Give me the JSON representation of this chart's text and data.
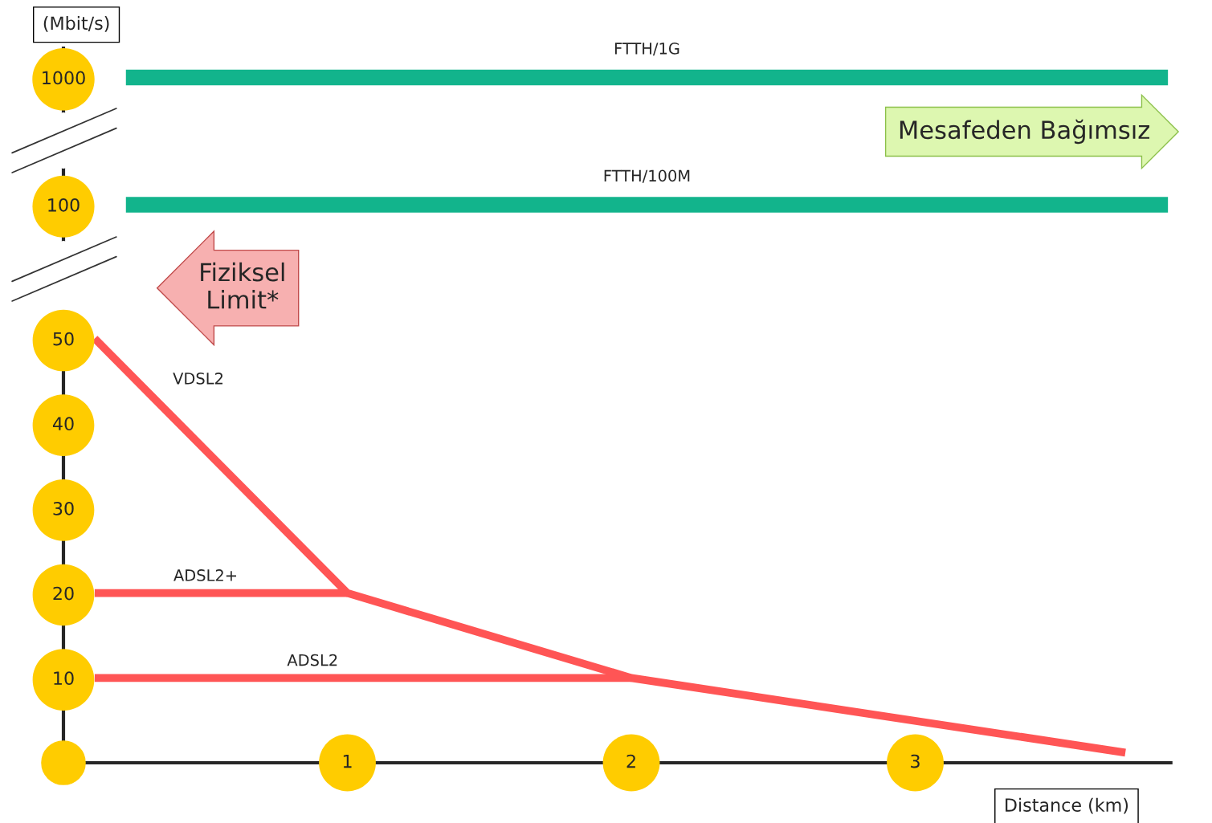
{
  "chart_data": [
    {
      "type": "line",
      "ylabel": "(Mbit/s)",
      "log": "y",
      "xlim": [
        0,
        3.9
      ],
      "ylim": [
        52,
        1700
      ],
      "yticks": [
        100,
        1000
      ],
      "tick_labels": "y",
      "grid": false,
      "legend": false,
      "series": [
        {
          "name": "FTTH/1G",
          "color": "#12b48c",
          "x": [
            0.22,
            3.89
          ],
          "values": [
            1000,
            1000
          ]
        },
        {
          "name": "FTTH/100M",
          "color": "#12b48c",
          "x": [
            0.22,
            3.89
          ],
          "values": [
            100,
            100
          ]
        }
      ],
      "annotations": [
        "Mesafeden Bağımsız"
      ]
    },
    {
      "type": "line",
      "xlabel": "Distance (km)",
      "xlim": [
        0,
        3.9
      ],
      "ylim": [
        0,
        53
      ],
      "xticks": [
        {
          "value": 0,
          "label": null
        },
        1,
        2,
        3
      ],
      "yticks": [
        10,
        20,
        30,
        40,
        50
      ],
      "grid": false,
      "legend": false,
      "series": [
        {
          "name": "VDSL2",
          "color": "#ff5555",
          "x": [
            0.11,
            1,
            2,
            3.74
          ],
          "values": [
            50,
            20,
            10,
            1.2
          ]
        },
        {
          "name": "ADSL2+",
          "color": "#ff5555",
          "x": [
            0.11,
            1
          ],
          "values": [
            20,
            20
          ]
        },
        {
          "name": "ADSL2",
          "color": "#ff5555",
          "x": [
            0.11,
            2
          ],
          "values": [
            10,
            10
          ]
        }
      ],
      "annotations": [
        "Fiziksel\nLimit*"
      ]
    }
  ]
}
